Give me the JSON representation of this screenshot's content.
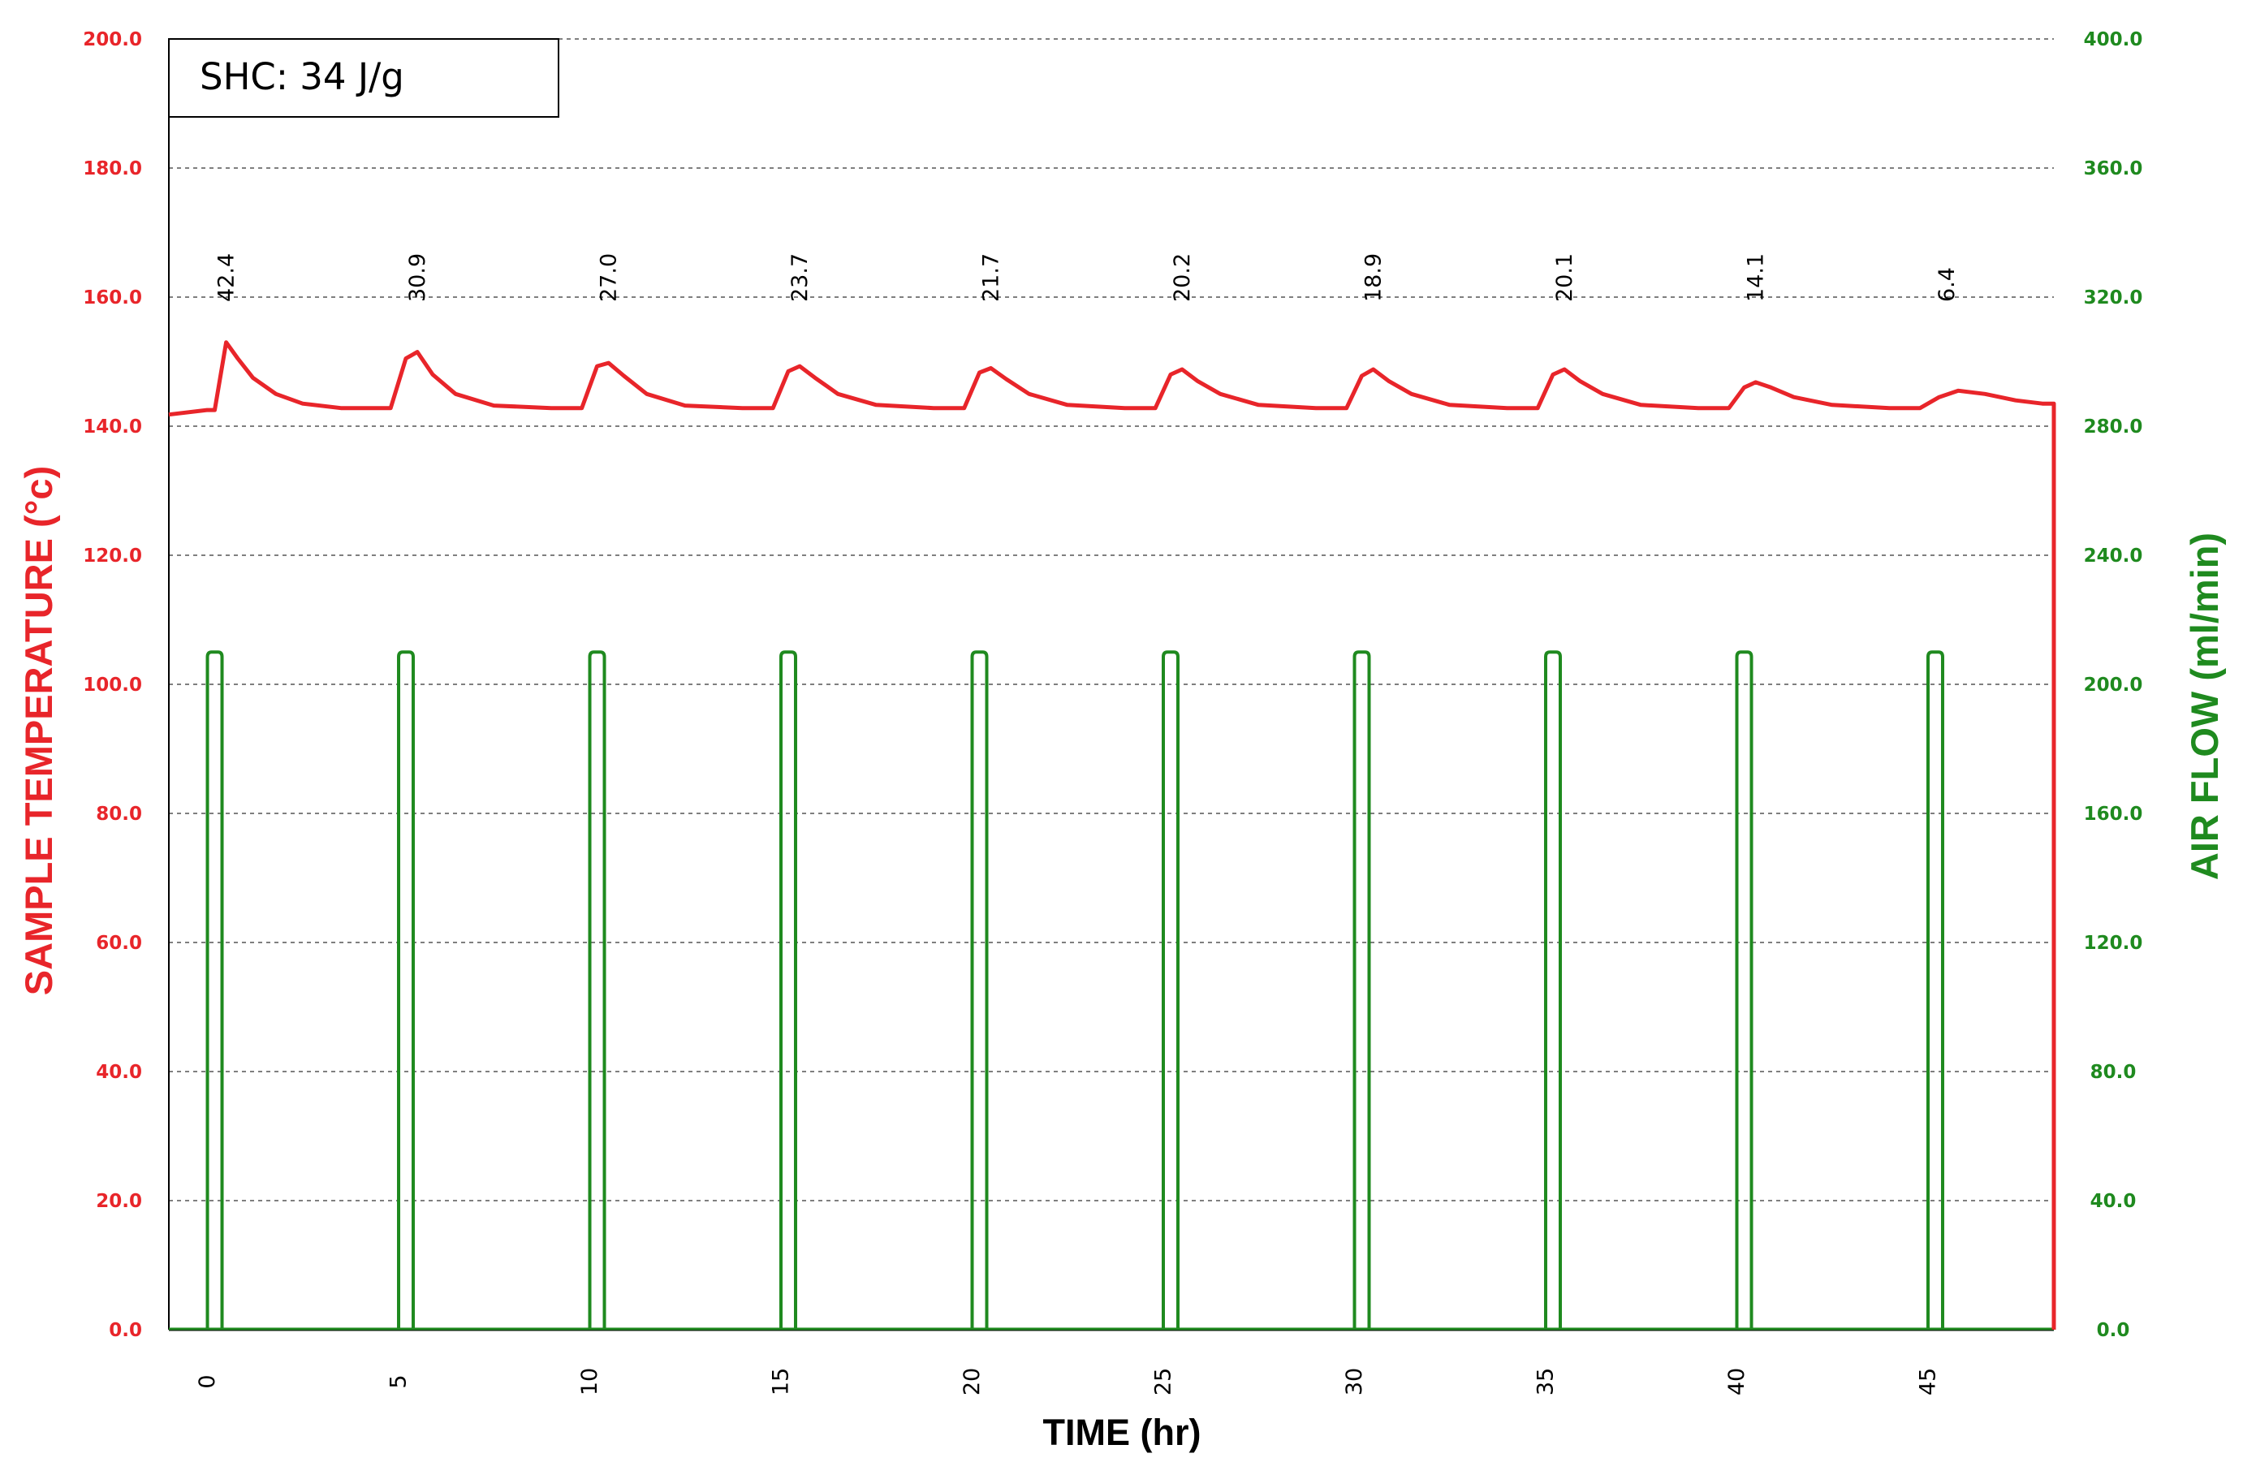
{
  "chart_data": {
    "type": "line",
    "box_label": "SHC: 34 J/g",
    "xlabel": "TIME (hr)",
    "ylabel_left": "SAMPLE TEMPERATURE (°c)",
    "ylabel_right": "AIR FLOW (ml/min)",
    "xlim": [
      -1,
      48.3
    ],
    "ylim_left": [
      0,
      200
    ],
    "ylim_right": [
      0,
      400
    ],
    "x_ticks": [
      "0",
      "5",
      "10",
      "15",
      "20",
      "25",
      "30",
      "35",
      "40",
      "45"
    ],
    "y_ticks_left": [
      "0.0",
      "20.0",
      "40.0",
      "60.0",
      "80.0",
      "100.0",
      "120.0",
      "140.0",
      "160.0",
      "180.0",
      "200.0"
    ],
    "y_ticks_right": [
      "0.0",
      "40.0",
      "80.0",
      "120.0",
      "160.0",
      "200.0",
      "240.0",
      "280.0",
      "320.0",
      "360.0",
      "400.0"
    ],
    "grid": true,
    "colors": {
      "temperature": "#e8252a",
      "airflow": "#1f8a1f",
      "grid": "#555555"
    },
    "series": [
      {
        "axis": "left",
        "x": [
          -1.0,
          0.0,
          0.2,
          0.5,
          0.8,
          1.2,
          1.8,
          2.5,
          3.5,
          4.8,
          5.2,
          5.5,
          5.9,
          6.5,
          7.5,
          9.0,
          9.8,
          10.2,
          10.5,
          10.9,
          11.5,
          12.5,
          14.0,
          14.8,
          15.2,
          15.5,
          15.9,
          16.5,
          17.5,
          19.0,
          19.8,
          20.2,
          20.5,
          20.9,
          21.5,
          22.5,
          24.0,
          24.8,
          25.2,
          25.5,
          25.9,
          26.5,
          27.5,
          29.0,
          29.8,
          30.2,
          30.5,
          30.9,
          31.5,
          32.5,
          34.0,
          34.8,
          35.2,
          35.5,
          35.9,
          36.5,
          37.5,
          39.0,
          39.8,
          40.2,
          40.5,
          40.9,
          41.5,
          42.5,
          44.0,
          44.8,
          45.3,
          45.8,
          46.5,
          47.3,
          48.0,
          48.3,
          48.3,
          48.3
        ],
        "y": [
          141.8,
          142.5,
          142.5,
          153.0,
          150.5,
          147.5,
          145.0,
          143.5,
          142.8,
          142.8,
          150.5,
          151.5,
          148.0,
          145.0,
          143.2,
          142.8,
          142.8,
          149.3,
          149.8,
          147.8,
          145.0,
          143.2,
          142.8,
          142.8,
          148.5,
          149.3,
          147.5,
          145.0,
          143.3,
          142.8,
          142.8,
          148.3,
          149.0,
          147.3,
          145.0,
          143.3,
          142.8,
          142.8,
          148.0,
          148.8,
          147.0,
          145.0,
          143.3,
          142.8,
          142.8,
          147.8,
          148.8,
          147.0,
          145.0,
          143.3,
          142.8,
          142.8,
          148.0,
          148.8,
          147.0,
          145.0,
          143.3,
          142.8,
          142.8,
          146.0,
          146.8,
          146.0,
          144.5,
          143.3,
          142.8,
          142.8,
          144.5,
          145.5,
          145.0,
          144.0,
          143.5,
          143.5,
          71.0,
          0.0
        ]
      },
      {
        "axis": "right",
        "pulse_x": [
          0.2,
          5.2,
          10.2,
          15.2,
          20.2,
          25.2,
          30.2,
          35.2,
          40.2,
          45.2
        ],
        "pulse_height": 210,
        "baseline": 0
      }
    ],
    "annotations": [
      {
        "x": 0.5,
        "text": "42.4"
      },
      {
        "x": 5.5,
        "text": "30.9"
      },
      {
        "x": 10.5,
        "text": "27.0"
      },
      {
        "x": 15.5,
        "text": "23.7"
      },
      {
        "x": 20.5,
        "text": "21.7"
      },
      {
        "x": 25.5,
        "text": "20.2"
      },
      {
        "x": 30.5,
        "text": "18.9"
      },
      {
        "x": 35.5,
        "text": "20.1"
      },
      {
        "x": 40.5,
        "text": "14.1"
      },
      {
        "x": 45.5,
        "text": "6.4"
      }
    ]
  }
}
